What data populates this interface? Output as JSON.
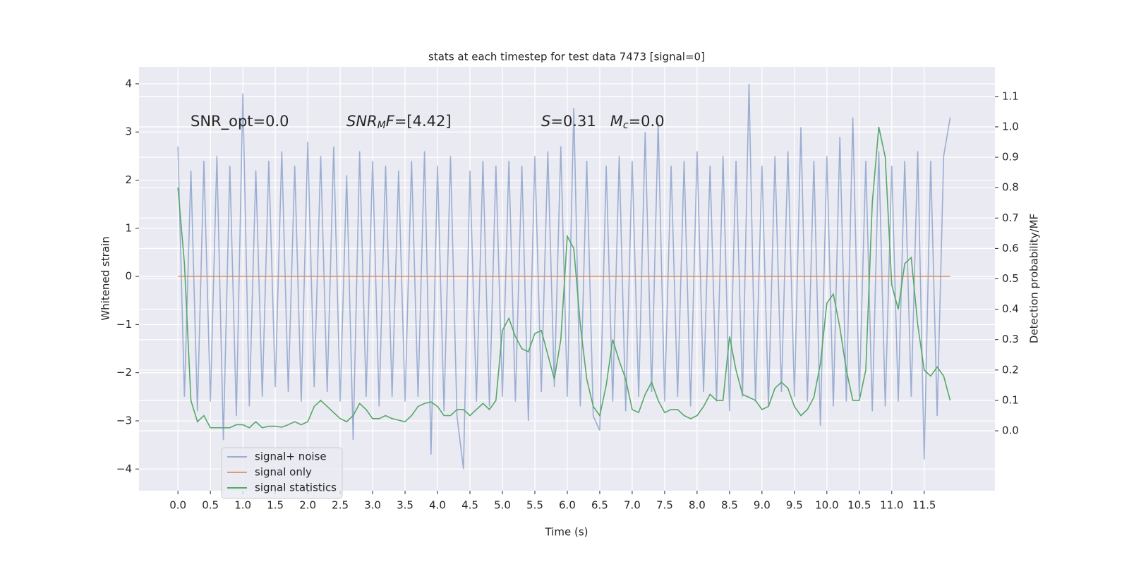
{
  "chart_data": {
    "type": "line",
    "title": "stats at each timestep for test data 7473 [signal=0]",
    "xlabel": "Time (s)",
    "ylabel": "Whitened strain",
    "y2label": "Detection probability/MF",
    "grid": true,
    "legend": "lower left",
    "annotations": [
      [
        {
          "text": "SNR_opt=0.0",
          "style": "normal"
        }
      ],
      [
        {
          "text": "SNR",
          "style": "italic"
        },
        {
          "text": "M",
          "style": "italic-sub"
        },
        {
          "text": "F",
          "style": "italic"
        },
        {
          "text": "=[4.42]",
          "style": "normal"
        }
      ],
      [
        {
          "text": "S",
          "style": "italic"
        },
        {
          "text": "=0.31   ",
          "style": "normal"
        },
        {
          "text": "M",
          "style": "italic"
        },
        {
          "text": "c",
          "style": "italic-sub"
        },
        {
          "text": "=0.0",
          "style": "normal"
        }
      ]
    ],
    "xlim": [
      -0.6,
      12.59
    ],
    "ylim": [
      -4.45,
      4.35
    ],
    "y2lim": [
      -0.197,
      1.197
    ],
    "xticks": [
      {
        "value": 0,
        "label": "0.0"
      },
      {
        "value": 0.5,
        "label": "0.5"
      },
      {
        "value": 1,
        "label": "1.0"
      },
      {
        "value": 1.5,
        "label": "1.5"
      },
      {
        "value": 2,
        "label": "2.0"
      },
      {
        "value": 2.5,
        "label": "2.5"
      },
      {
        "value": 3,
        "label": "3.0"
      },
      {
        "value": 3.5,
        "label": "3.5"
      },
      {
        "value": 4,
        "label": "4.0"
      },
      {
        "value": 4.5,
        "label": "4.5"
      },
      {
        "value": 5,
        "label": "5.0"
      },
      {
        "value": 5.5,
        "label": "5.5"
      },
      {
        "value": 6,
        "label": "6.0"
      },
      {
        "value": 6.5,
        "label": "6.5"
      },
      {
        "value": 7,
        "label": "7.0"
      },
      {
        "value": 7.5,
        "label": "7.5"
      },
      {
        "value": 8,
        "label": "8.0"
      },
      {
        "value": 8.5,
        "label": "8.5"
      },
      {
        "value": 9,
        "label": "9.0"
      },
      {
        "value": 9.5,
        "label": "9.5"
      },
      {
        "value": 10,
        "label": "10.0"
      },
      {
        "value": 10.5,
        "label": "10.5"
      },
      {
        "value": 11,
        "label": "11.0"
      },
      {
        "value": 11.5,
        "label": "11.5"
      }
    ],
    "yticks": [
      {
        "value": -4,
        "label": "−4"
      },
      {
        "value": -3,
        "label": "−3"
      },
      {
        "value": -2,
        "label": "−2"
      },
      {
        "value": -1,
        "label": "−1"
      },
      0,
      1,
      2,
      3,
      4
    ],
    "y2ticks": [
      {
        "value": 0,
        "label": "0.0"
      },
      {
        "value": 0.1,
        "label": "0.1"
      },
      {
        "value": 0.2,
        "label": "0.2"
      },
      {
        "value": 0.3,
        "label": "0.3"
      },
      {
        "value": 0.4,
        "label": "0.4"
      },
      {
        "value": 0.5,
        "label": "0.5"
      },
      {
        "value": 0.6,
        "label": "0.6"
      },
      {
        "value": 0.7,
        "label": "0.7"
      },
      {
        "value": 0.8,
        "label": "0.8"
      },
      {
        "value": 0.9,
        "label": "0.9"
      },
      {
        "value": 1.0,
        "label": "1.0"
      },
      {
        "value": 1.1,
        "label": "1.1"
      }
    ],
    "x": [
      0,
      0.1,
      0.2,
      0.3,
      0.4,
      0.5,
      0.6,
      0.7,
      0.8,
      0.9,
      1,
      1.1,
      1.2,
      1.3,
      1.4,
      1.5,
      1.6,
      1.7,
      1.8,
      1.9,
      2,
      2.1,
      2.2,
      2.3,
      2.4,
      2.5,
      2.6,
      2.7,
      2.8,
      2.9,
      3,
      3.1,
      3.2,
      3.3,
      3.4,
      3.5,
      3.6,
      3.7,
      3.8,
      3.9,
      4,
      4.1,
      4.2,
      4.3,
      4.4,
      4.5,
      4.6,
      4.7,
      4.8,
      4.9,
      5,
      5.1,
      5.2,
      5.3,
      5.4,
      5.5,
      5.6,
      5.7,
      5.8,
      5.9,
      6,
      6.1,
      6.2,
      6.3,
      6.4,
      6.5,
      6.6,
      6.7,
      6.8,
      6.9,
      7,
      7.1,
      7.2,
      7.3,
      7.4,
      7.5,
      7.6,
      7.7,
      7.8,
      7.9,
      8,
      8.1,
      8.2,
      8.3,
      8.4,
      8.5,
      8.6,
      8.7,
      8.8,
      8.9,
      9,
      9.1,
      9.2,
      9.3,
      9.4,
      9.5,
      9.6,
      9.7,
      9.8,
      9.9,
      10,
      10.1,
      10.2,
      10.3,
      10.4,
      10.5,
      10.6,
      10.7,
      10.8,
      10.9,
      11,
      11.1,
      11.2,
      11.3,
      11.4,
      11.5,
      11.6,
      11.7,
      11.8,
      11.9
    ],
    "series": [
      {
        "name": "signal+ noise",
        "color": "#4c72b0",
        "opacity": 0.5,
        "axis": "y",
        "values": [
          2.7,
          -2.5,
          2.2,
          -2.8,
          2.4,
          -2.6,
          2.5,
          -3.4,
          2.3,
          -2.9,
          3.8,
          -2.7,
          2.2,
          -2.5,
          2.4,
          -2.3,
          2.6,
          -2.4,
          2.3,
          -2.6,
          2.8,
          -2.3,
          2.5,
          -2.4,
          2.7,
          -2.6,
          2.1,
          -3.4,
          2.6,
          -2.5,
          2.4,
          -2.7,
          2.3,
          -2.5,
          2.2,
          -2.6,
          2.4,
          -2.5,
          2.6,
          -3.7,
          2.3,
          -2.8,
          2.5,
          -2.9,
          -4.0,
          2.2,
          -2.6,
          2.4,
          -2.7,
          2.3,
          -2.5,
          2.4,
          -2.6,
          2.3,
          -3.0,
          2.5,
          -2.4,
          2.6,
          -2.3,
          2.7,
          -2.5,
          3.5,
          -2.7,
          2.4,
          -2.9,
          -3.2,
          2.3,
          -2.6,
          2.5,
          -2.8,
          2.4,
          -2.5,
          3.0,
          -2.4,
          3.2,
          -2.6,
          2.3,
          -2.5,
          2.4,
          -2.7,
          2.6,
          -2.4,
          2.3,
          -2.6,
          2.5,
          -2.8,
          2.4,
          -2.5,
          4.0,
          -2.6,
          2.3,
          -2.7,
          2.5,
          -2.4,
          2.6,
          -2.5,
          3.1,
          -2.6,
          2.4,
          -3.1,
          2.5,
          -2.7,
          2.9,
          -2.6,
          3.3,
          -2.5,
          2.4,
          -2.8,
          2.6,
          -2.7,
          2.3,
          -2.6,
          2.4,
          -2.5,
          2.6,
          -3.8,
          2.4,
          -2.9,
          2.5,
          3.3
        ]
      },
      {
        "name": "signal only",
        "color": "#dd8452",
        "opacity": 0.8,
        "axis": "y",
        "values": [
          0,
          0,
          0,
          0,
          0,
          0,
          0,
          0,
          0,
          0,
          0,
          0,
          0,
          0,
          0,
          0,
          0,
          0,
          0,
          0,
          0,
          0,
          0,
          0,
          0,
          0,
          0,
          0,
          0,
          0,
          0,
          0,
          0,
          0,
          0,
          0,
          0,
          0,
          0,
          0,
          0,
          0,
          0,
          0,
          0,
          0,
          0,
          0,
          0,
          0,
          0,
          0,
          0,
          0,
          0,
          0,
          0,
          0,
          0,
          0,
          0,
          0,
          0,
          0,
          0,
          0,
          0,
          0,
          0,
          0,
          0,
          0,
          0,
          0,
          0,
          0,
          0,
          0,
          0,
          0,
          0,
          0,
          0,
          0,
          0,
          0,
          0,
          0,
          0,
          0,
          0,
          0,
          0,
          0,
          0,
          0,
          0,
          0,
          0,
          0,
          0,
          0,
          0,
          0,
          0,
          0,
          0,
          0,
          0,
          0,
          0,
          0,
          0,
          0,
          0,
          0,
          0,
          0,
          0,
          0
        ]
      },
      {
        "name": "signal statistics",
        "color": "#55a868",
        "opacity": 1,
        "axis": "y2",
        "values": [
          0.8,
          0.55,
          0.1,
          0.03,
          0.05,
          0.01,
          0.01,
          0.01,
          0.01,
          0.02,
          0.02,
          0.01,
          0.03,
          0.01,
          0.015,
          0.015,
          0.012,
          0.02,
          0.03,
          0.02,
          0.03,
          0.08,
          0.1,
          0.08,
          0.06,
          0.04,
          0.03,
          0.05,
          0.09,
          0.07,
          0.04,
          0.04,
          0.05,
          0.04,
          0.035,
          0.03,
          0.05,
          0.08,
          0.09,
          0.095,
          0.08,
          0.05,
          0.05,
          0.07,
          0.07,
          0.05,
          0.07,
          0.09,
          0.07,
          0.1,
          0.33,
          0.37,
          0.31,
          0.27,
          0.26,
          0.32,
          0.33,
          0.25,
          0.17,
          0.3,
          0.64,
          0.6,
          0.35,
          0.17,
          0.08,
          0.05,
          0.15,
          0.3,
          0.23,
          0.17,
          0.07,
          0.06,
          0.12,
          0.16,
          0.1,
          0.06,
          0.07,
          0.07,
          0.05,
          0.04,
          0.05,
          0.08,
          0.12,
          0.1,
          0.1,
          0.31,
          0.2,
          0.12,
          0.11,
          0.1,
          0.07,
          0.08,
          0.14,
          0.16,
          0.14,
          0.08,
          0.05,
          0.07,
          0.11,
          0.22,
          0.42,
          0.45,
          0.34,
          0.2,
          0.1,
          0.1,
          0.2,
          0.75,
          1.0,
          0.9,
          0.48,
          0.4,
          0.55,
          0.57,
          0.35,
          0.2,
          0.18,
          0.21,
          0.18,
          0.1
        ]
      }
    ]
  }
}
